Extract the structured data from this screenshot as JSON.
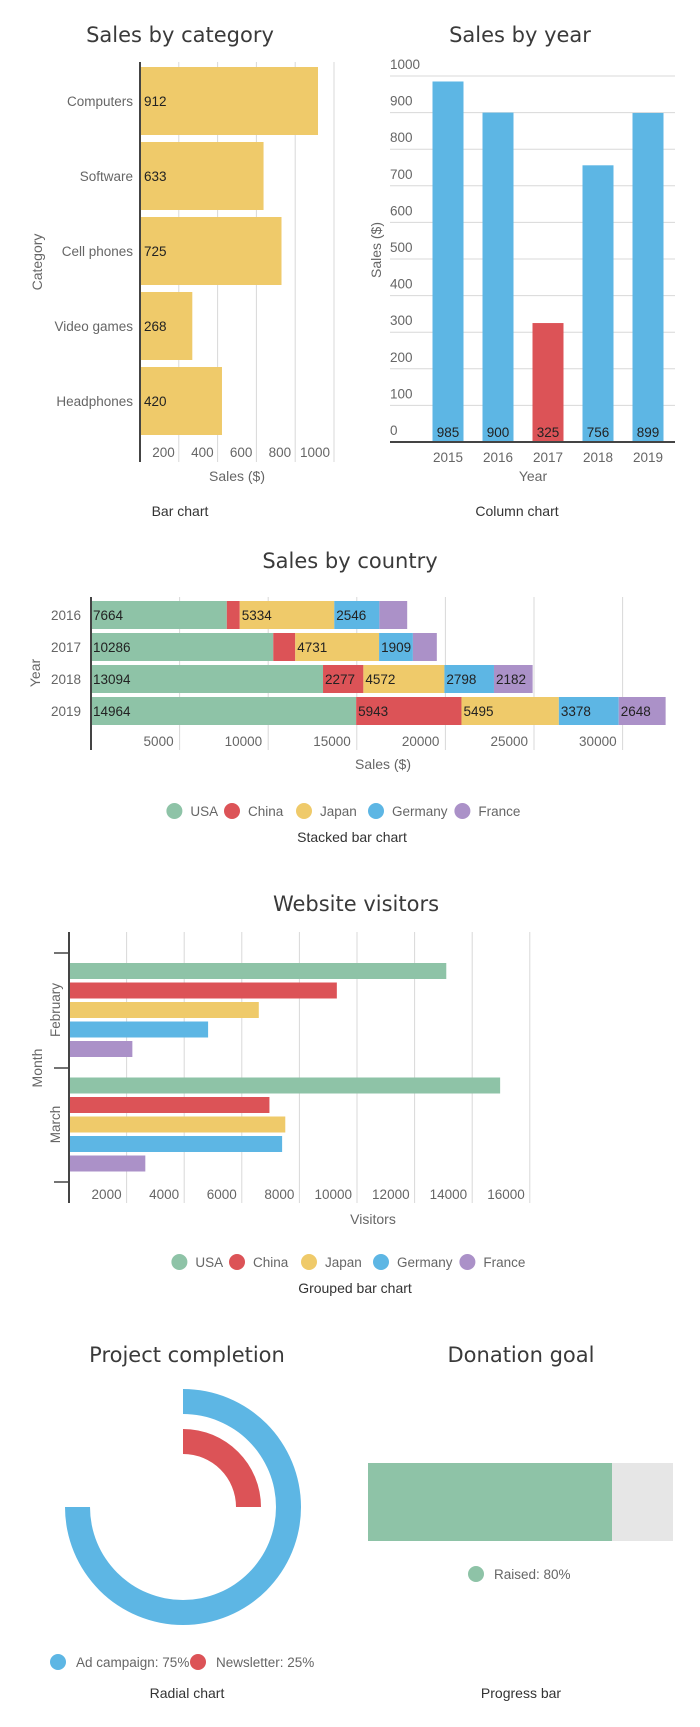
{
  "colors": {
    "usa": "#8ec3a7",
    "china": "#dc5357",
    "japan": "#efca6a",
    "germany": "#5db6e4",
    "france": "#ab91c8",
    "track": "#e6e6e6",
    "bar": "#efca6a",
    "column": "#5db6e4",
    "highlight": "#dc5357"
  },
  "chart_data": [
    {
      "id": "bar",
      "type": "bar",
      "orientation": "horizontal",
      "title": "Sales by category",
      "caption": "Bar chart",
      "xlabel": "Sales ($)",
      "ylabel": "Category",
      "categories": [
        "Computers",
        "Software",
        "Cell phones",
        "Video games",
        "Headphones"
      ],
      "values": [
        912,
        633,
        725,
        268,
        420
      ],
      "xticks": [
        200,
        400,
        600,
        800,
        1000
      ],
      "xlim": [
        0,
        1000
      ],
      "grid": true
    },
    {
      "id": "column",
      "type": "bar",
      "orientation": "vertical",
      "title": "Sales by year",
      "caption": "Column chart",
      "xlabel": "Year",
      "ylabel": "Sales ($)",
      "categories": [
        "2015",
        "2016",
        "2017",
        "2018",
        "2019"
      ],
      "values": [
        985,
        900,
        325,
        756,
        899
      ],
      "highlight_index": 2,
      "yticks": [
        0,
        100,
        200,
        300,
        400,
        500,
        600,
        700,
        800,
        900,
        1000
      ],
      "ylim": [
        0,
        1000
      ],
      "grid": true
    },
    {
      "id": "stacked",
      "type": "bar",
      "orientation": "horizontal-stacked",
      "title": "Sales by country",
      "caption": "Stacked bar chart",
      "xlabel": "Sales ($)",
      "ylabel": "Year",
      "categories": [
        "2016",
        "2017",
        "2018",
        "2019"
      ],
      "series": [
        {
          "name": "USA",
          "key": "usa",
          "values": [
            7664,
            10286,
            13094,
            14964
          ],
          "labels": [
            "7664",
            "10286",
            "13094",
            "14964"
          ]
        },
        {
          "name": "China",
          "key": "china",
          "values": [
            730,
            1240,
            2277,
            5943
          ],
          "labels": [
            "",
            "",
            "2277",
            "5943"
          ]
        },
        {
          "name": "Japan",
          "key": "japan",
          "values": [
            5334,
            4731,
            4572,
            5495
          ],
          "labels": [
            "5334",
            "4731",
            "4572",
            "5495"
          ]
        },
        {
          "name": "Germany",
          "key": "germany",
          "values": [
            2546,
            1909,
            2798,
            3378
          ],
          "labels": [
            "2546",
            "1909",
            "2798",
            "3378"
          ]
        },
        {
          "name": "France",
          "key": "france",
          "values": [
            1570,
            1350,
            2182,
            2648
          ],
          "labels": [
            "",
            "",
            "2182",
            "2648"
          ]
        }
      ],
      "xticks": [
        5000,
        10000,
        15000,
        20000,
        25000,
        30000
      ],
      "xlim": [
        0,
        35000
      ],
      "legend": "bottom",
      "grid": true
    },
    {
      "id": "grouped",
      "type": "bar",
      "orientation": "horizontal-grouped",
      "title": "Website visitors",
      "caption": "Grouped bar chart",
      "xlabel": "Visitors",
      "ylabel": "Month",
      "categories": [
        "February",
        "March"
      ],
      "series": [
        {
          "name": "USA",
          "key": "usa",
          "values": [
            13100,
            14970
          ]
        },
        {
          "name": "China",
          "key": "china",
          "values": [
            9300,
            6960
          ]
        },
        {
          "name": "Japan",
          "key": "japan",
          "values": [
            6590,
            7510
          ]
        },
        {
          "name": "Germany",
          "key": "germany",
          "values": [
            4830,
            7400
          ]
        },
        {
          "name": "France",
          "key": "france",
          "values": [
            2200,
            2650
          ]
        }
      ],
      "xticks": [
        2000,
        4000,
        6000,
        8000,
        10000,
        12000,
        14000,
        16000
      ],
      "xlim": [
        0,
        16000
      ],
      "legend": "bottom",
      "grid": true
    },
    {
      "id": "radial",
      "type": "pie",
      "variant": "radial",
      "title": "Project completion",
      "caption": "Radial chart",
      "series": [
        {
          "name": "Ad campaign",
          "key": "germany",
          "value": 75,
          "label": "Ad campaign: 75%"
        },
        {
          "name": "Newsletter",
          "key": "china",
          "value": 25,
          "label": "Newsletter: 25%"
        }
      ]
    },
    {
      "id": "progress",
      "type": "bar",
      "variant": "progress",
      "title": "Donation goal",
      "caption": "Progress bar",
      "value": 0.8,
      "label": "Raised: 80%"
    }
  ]
}
